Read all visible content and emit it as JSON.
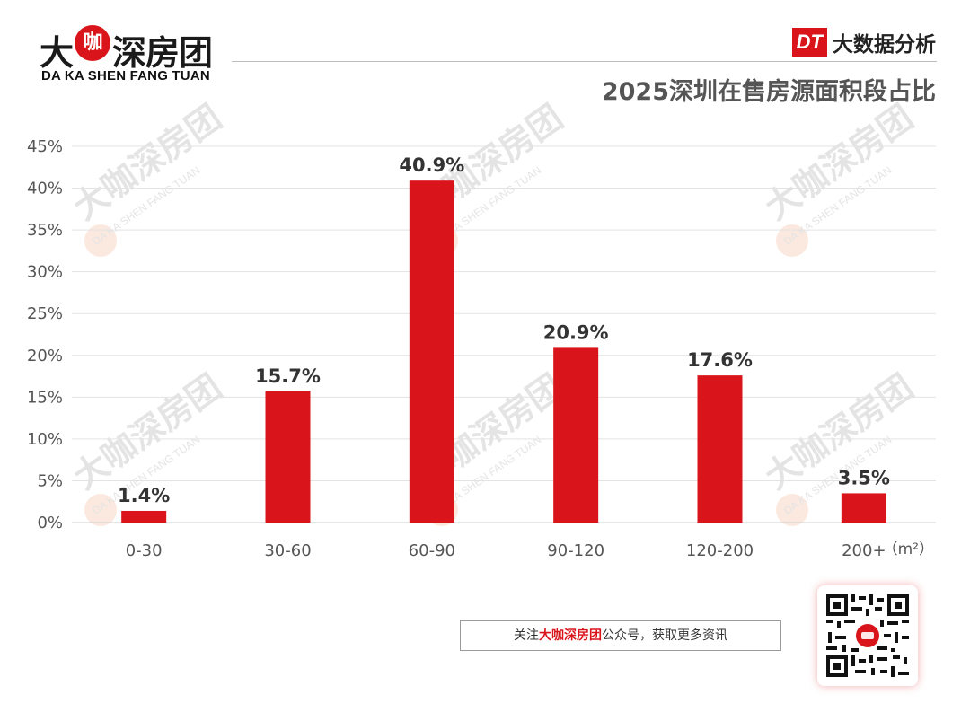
{
  "header": {
    "logo_cn_left": "大",
    "logo_cn_circle": "咖",
    "logo_cn_right": "深房团",
    "logo_en": "DA KA SHEN FANG TUAN",
    "brand_badge": "DT",
    "brand_label": "大数据分析"
  },
  "watermark": {
    "cn": "大咖深房团",
    "en": "DA KA SHEN FANG TUAN"
  },
  "footer": {
    "prefix": "关注",
    "highlight": "大咖深房团",
    "suffix": "公众号，获取更多资讯"
  },
  "colors": {
    "bar": "#d9151b",
    "grid": "#e3e3e3",
    "axis_text": "#555555",
    "label_text": "#333333"
  },
  "chart_data": {
    "type": "bar",
    "title": "2025深圳在售房源面积段占比",
    "categories": [
      "0-30",
      "30-60",
      "60-90",
      "90-120",
      "120-200",
      "200+"
    ],
    "values": [
      1.4,
      15.7,
      40.9,
      20.9,
      17.6,
      3.5
    ],
    "value_labels": [
      "1.4%",
      "15.7%",
      "40.9%",
      "20.9%",
      "17.6%",
      "3.5%"
    ],
    "x_unit": "（m²）",
    "xlabel": "",
    "ylabel": "",
    "ylim": [
      0,
      45
    ],
    "yticks": [
      0,
      5,
      10,
      15,
      20,
      25,
      30,
      35,
      40,
      45
    ],
    "ytick_labels": [
      "0%",
      "5%",
      "10%",
      "15%",
      "20%",
      "25%",
      "30%",
      "35%",
      "40%",
      "45%"
    ],
    "grid": true,
    "legend": "none"
  }
}
